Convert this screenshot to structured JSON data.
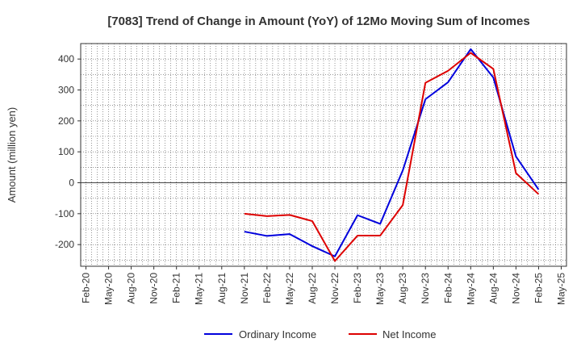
{
  "chart_data": {
    "type": "line",
    "title": "[7083]  Trend of Change in Amount (YoY) of 12Mo Moving Sum of Incomes",
    "ylabel": "Amount (million yen)",
    "xlabel": "",
    "ylim": [
      -270,
      450
    ],
    "yticks": [
      -200,
      -100,
      0,
      100,
      200,
      300,
      400
    ],
    "x": [
      "Feb-20",
      "May-20",
      "Aug-20",
      "Nov-20",
      "Feb-21",
      "May-21",
      "Aug-21",
      "Nov-21",
      "Feb-22",
      "May-22",
      "Aug-22",
      "Nov-22",
      "Feb-23",
      "May-23",
      "Aug-23",
      "Nov-23",
      "Feb-24",
      "May-24",
      "Aug-24",
      "Nov-24",
      "Feb-25",
      "May-25"
    ],
    "grid": true,
    "legend_position": "bottom",
    "series": [
      {
        "name": "Ordinary Income",
        "color": "#0000dd",
        "values": [
          null,
          null,
          null,
          null,
          null,
          null,
          null,
          -158,
          -172,
          -166,
          -205,
          -238,
          -105,
          -133,
          40,
          270,
          325,
          432,
          340,
          85,
          -22,
          null
        ]
      },
      {
        "name": "Net Income",
        "color": "#dd0000",
        "values": [
          null,
          null,
          null,
          null,
          null,
          null,
          null,
          -100,
          -108,
          -104,
          -124,
          -253,
          -171,
          -171,
          -72,
          323,
          362,
          420,
          368,
          31,
          -37,
          null
        ]
      }
    ]
  }
}
